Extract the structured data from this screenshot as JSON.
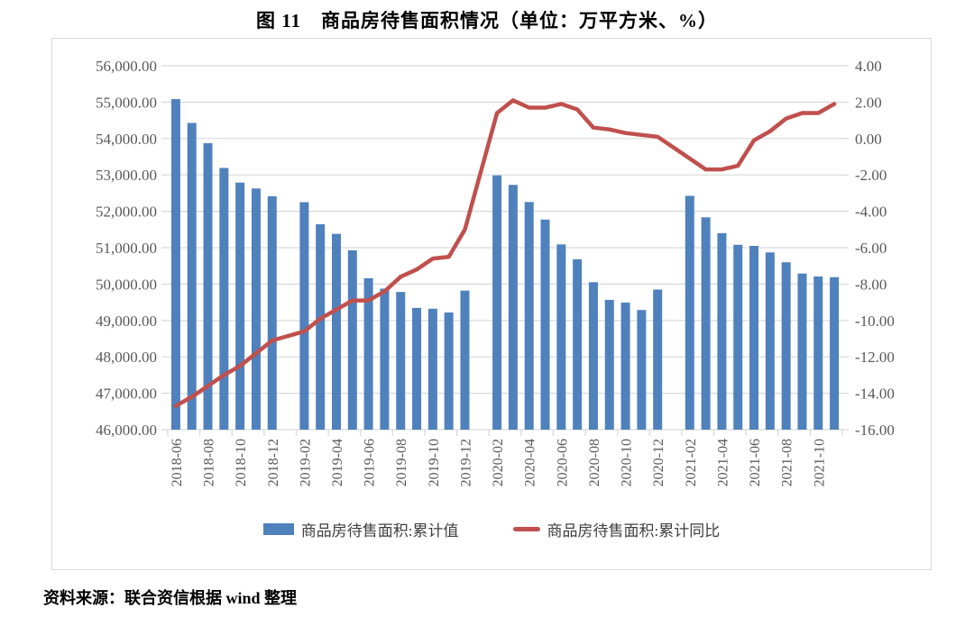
{
  "page": {
    "title": "图 11　商品房待售面积情况（单位：万平方米、%）",
    "source_note": "资料来源：联合资信根据 wind 整理"
  },
  "legend": {
    "bar_series_label": "商品房待售面积:累计值",
    "line_series_label": "商品房待售面积:累计同比"
  },
  "colors": {
    "bar": "#4F81BD",
    "line": "#C0504D",
    "grid": "#D9D9D9",
    "axis_text": "#595959",
    "chart_border": "#D9D9D9",
    "title_text": "#000000"
  },
  "chart_data": {
    "type": "bar",
    "combo": "bar+line, dual axis",
    "title": "图 11　商品房待售面积情况（单位：万平方米、%）",
    "grid": "horizontal",
    "legend_position": "bottom",
    "categories": [
      "2018-06",
      "2018-07",
      "2018-08",
      "2018-09",
      "2018-10",
      "2018-11",
      "2018-12",
      "2019-01",
      "2019-02",
      "2019-03",
      "2019-04",
      "2019-05",
      "2019-06",
      "2019-07",
      "2019-08",
      "2019-09",
      "2019-10",
      "2019-11",
      "2019-12",
      "2020-01",
      "2020-02",
      "2020-03",
      "2020-04",
      "2020-05",
      "2020-06",
      "2020-07",
      "2020-08",
      "2020-09",
      "2020-10",
      "2020-11",
      "2020-12",
      "2021-01",
      "2021-02",
      "2021-03",
      "2021-04",
      "2021-05",
      "2021-06",
      "2021-07",
      "2021-08",
      "2021-09",
      "2021-10",
      "2021-11"
    ],
    "x_tick_labels": [
      "2018-06",
      "2018-08",
      "2018-10",
      "2018-12",
      "2019-02",
      "2019-04",
      "2019-06",
      "2019-08",
      "2019-10",
      "2019-12",
      "2020-02",
      "2020-04",
      "2020-06",
      "2020-08",
      "2020-10",
      "2020-12",
      "2021-02",
      "2021-04",
      "2021-06",
      "2021-08",
      "2021-10"
    ],
    "series": [
      {
        "name": "商品房待售面积:累计值",
        "type": "bar",
        "axis": "left",
        "unit": "万平方米",
        "values": [
          55083,
          54428,
          53873,
          53191,
          52789,
          52627,
          52414,
          null,
          52251,
          51646,
          51380,
          50928,
          50162,
          49876,
          49784,
          49346,
          49323,
          49221,
          49821,
          null,
          52987,
          52726,
          52255,
          51773,
          51091,
          50682,
          50052,
          49566,
          49492,
          49287,
          49850,
          null,
          52425,
          51835,
          51400,
          51080,
          51050,
          50870,
          50600,
          50290,
          50210,
          50190
        ]
      },
      {
        "name": "商品房待售面积:累计同比",
        "type": "line",
        "axis": "right",
        "unit": "%",
        "values": [
          -14.7,
          -14.2,
          -13.6,
          -13.0,
          -12.5,
          -11.8,
          -11.1,
          null,
          -10.6,
          -9.9,
          -9.4,
          -8.9,
          -8.9,
          -8.4,
          -7.6,
          -7.2,
          -6.6,
          -6.5,
          -5.0,
          null,
          1.4,
          2.1,
          1.7,
          1.7,
          1.9,
          1.6,
          0.6,
          0.5,
          0.3,
          0.2,
          0.1,
          null,
          -1.1,
          -1.7,
          -1.7,
          -1.5,
          -0.1,
          0.4,
          1.1,
          1.4,
          1.4,
          1.9
        ]
      }
    ],
    "left_axis": {
      "min": 46000,
      "max": 56000,
      "step": 1000,
      "tick_labels": [
        "56,000.00",
        "55,000.00",
        "54,000.00",
        "53,000.00",
        "52,000.00",
        "51,000.00",
        "50,000.00",
        "49,000.00",
        "48,000.00",
        "47,000.00",
        "46,000.00"
      ]
    },
    "right_axis": {
      "min": -16,
      "max": 4,
      "step": 2,
      "tick_labels": [
        "4.00",
        "2.00",
        "0.00",
        "-2.00",
        "-4.00",
        "-6.00",
        "-8.00",
        "-10.00",
        "-12.00",
        "-14.00",
        "-16.00"
      ]
    }
  }
}
